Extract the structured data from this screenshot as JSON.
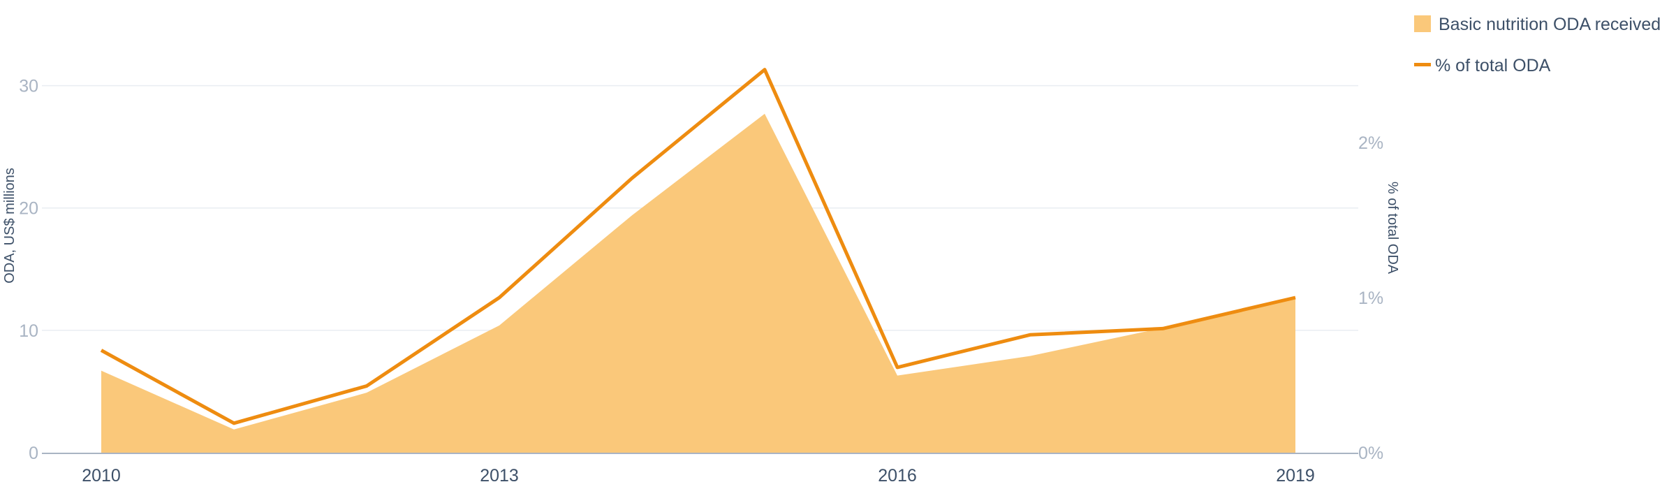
{
  "chart_data": {
    "type": "area",
    "x": [
      2010,
      2011,
      2012,
      2013,
      2014,
      2015,
      2016,
      2017,
      2018,
      2019
    ],
    "xticks": [
      "2010",
      "2013",
      "2016",
      "2019"
    ],
    "series": [
      {
        "name": "Basic nutrition ODA received",
        "type": "area",
        "axis": "left",
        "color": "#fac87a",
        "values": [
          6.7,
          1.9,
          4.9,
          10.4,
          19.4,
          27.7,
          6.3,
          7.9,
          10.2,
          12.6
        ]
      },
      {
        "name": "% of total ODA",
        "type": "line",
        "axis": "right",
        "color": "#ee8c10",
        "values": [
          0.66,
          0.19,
          0.43,
          1.0,
          1.77,
          2.47,
          0.55,
          0.76,
          0.8,
          1.0
        ]
      }
    ],
    "ylabel": "ODA, US$ millions",
    "ylim": [
      0,
      35
    ],
    "yticks": [
      0,
      10,
      20,
      30
    ],
    "y2label": "% of total ODA",
    "y2lim": [
      0,
      2.5
    ],
    "y2ticks": [
      0,
      1,
      2
    ],
    "y2tick_labels": [
      "0%",
      "1%",
      "2%"
    ],
    "grid": true,
    "legend_position": "top-right"
  }
}
